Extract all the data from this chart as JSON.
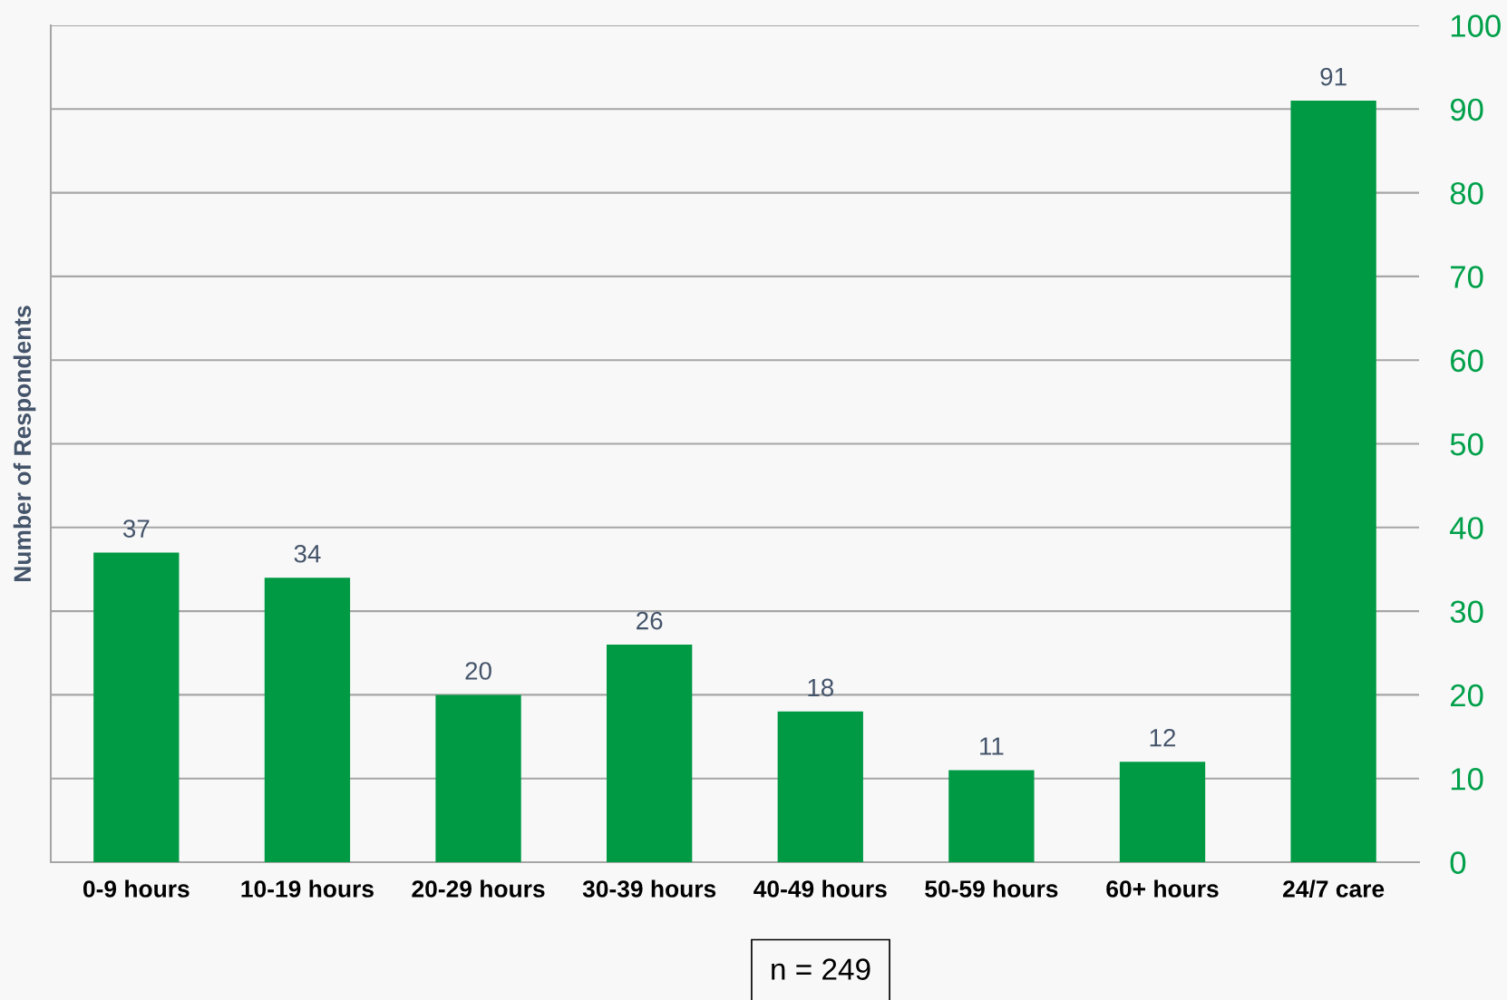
{
  "chart_data": {
    "type": "bar",
    "ylabel": "Number of Respondents",
    "categories": [
      "0-9 hours",
      "10-19 hours",
      "20-29 hours",
      "30-39 hours",
      "40-49 hours",
      "50-59 hours",
      "60+ hours",
      "24/7 care"
    ],
    "values": [
      37,
      34,
      20,
      26,
      18,
      11,
      12,
      91
    ],
    "color": "#009a44",
    "ylim": [
      0,
      100
    ],
    "yticks": [
      0,
      10,
      20,
      30,
      40,
      50,
      60,
      70,
      80,
      90,
      100
    ],
    "grid": "y",
    "data_labels": true,
    "annotations": [
      "n = 249"
    ]
  }
}
